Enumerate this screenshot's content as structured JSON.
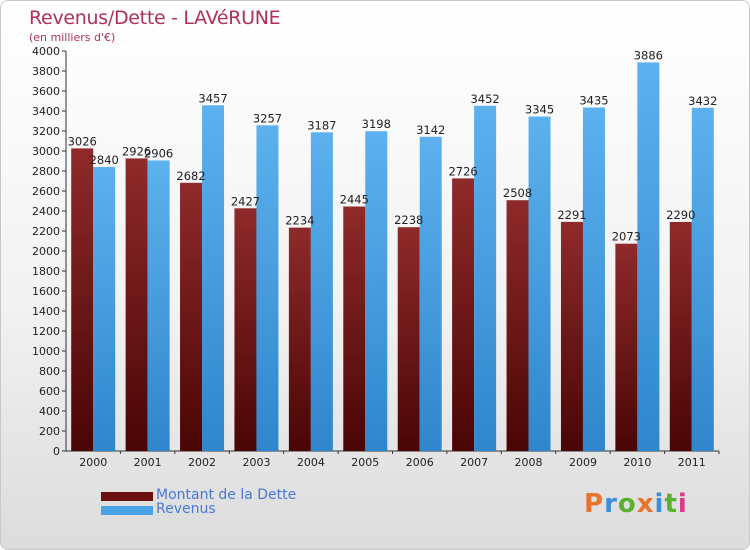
{
  "chart_data": {
    "type": "bar",
    "title": "Revenus/Dette - LAVéRUNE",
    "subtitle": "(en milliers d'€)",
    "categories": [
      "2000",
      "2001",
      "2002",
      "2003",
      "2004",
      "2005",
      "2006",
      "2007",
      "2008",
      "2009",
      "2010",
      "2011"
    ],
    "series": [
      {
        "name": "Montant de la Dette",
        "color": "#6b0f0f",
        "values": [
          3026,
          2926,
          2682,
          2427,
          2234,
          2445,
          2238,
          2726,
          2508,
          2291,
          2073,
          2290
        ]
      },
      {
        "name": "Revenus",
        "color": "#4aa3e6",
        "values": [
          2840,
          2906,
          3457,
          3257,
          3187,
          3198,
          3142,
          3452,
          3345,
          3435,
          3886,
          3432
        ]
      }
    ],
    "ylim": [
      0,
      4000
    ],
    "ytick_step": 200,
    "grid": false,
    "legend_position": "bottom-left"
  },
  "logo": {
    "text": "Proxiti"
  }
}
